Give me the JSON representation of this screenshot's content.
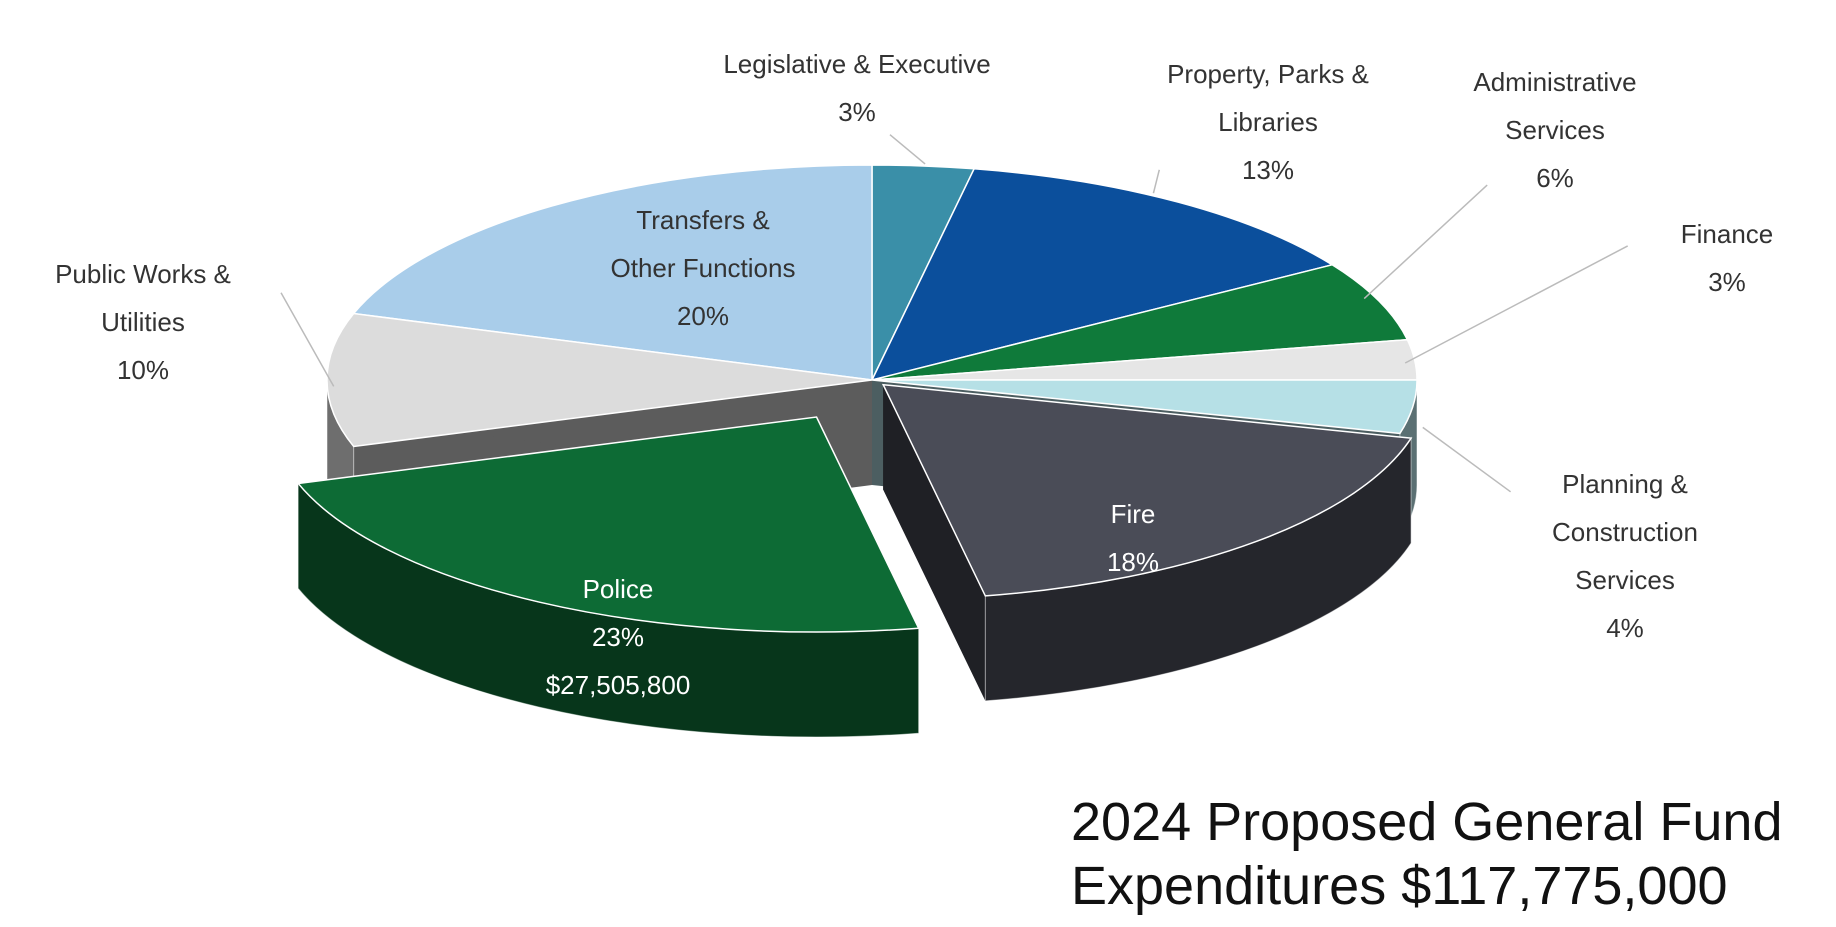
{
  "chart_data": {
    "type": "pie3d",
    "title": "2024 Proposed General Fund Expenditures $117,775,000",
    "categories": [
      "Legislative & Executive",
      "Property, Parks & Libraries",
      "Administrative Services",
      "Finance",
      "Planning & Construction Services",
      "Fire",
      "Police",
      "Public Works & Utilities",
      "Transfers & Other Functions"
    ],
    "values": [
      3,
      13,
      6,
      3,
      4,
      18,
      23,
      10,
      20
    ],
    "value_labels": [
      "3%",
      "13%",
      "6%",
      "3%",
      "4%",
      "18%",
      "23%",
      "10%",
      "20%"
    ],
    "colors": [
      "#3a8fa8",
      "#0b4f9c",
      "#0f7a3a",
      "#e6e6e6",
      "#b6e0e6",
      "#4a4c57",
      "#0d6b35",
      "#dcdcdc",
      "#a9cdea"
    ],
    "annotations": [
      "$27,505,800"
    ]
  }
}
